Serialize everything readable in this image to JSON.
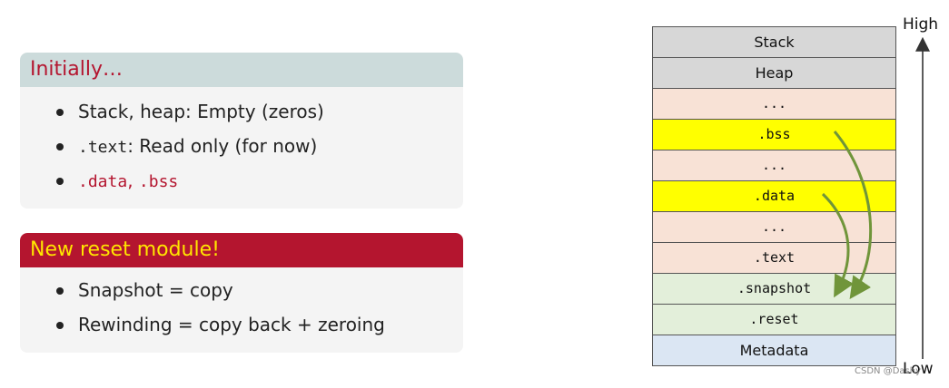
{
  "left_panel": {
    "box1": {
      "title": "Initially…",
      "items": [
        {
          "parts": [
            "Stack, heap: Empty (zeros)"
          ]
        },
        {
          "parts": [
            ".text",
            ": Read only (for now)"
          ]
        },
        {
          "parts": [
            ".data",
            ", ",
            ".bss"
          ]
        }
      ]
    },
    "box2": {
      "title": "New reset module!",
      "items": [
        {
          "text": "Snapshot = copy"
        },
        {
          "text": "Rewinding = copy back + zeroing"
        }
      ]
    }
  },
  "memory_map": {
    "segments": [
      {
        "label": "Stack",
        "color": "#d7d7d7"
      },
      {
        "label": "Heap",
        "color": "#d7d7d7"
      },
      {
        "label": "...",
        "color": "#f8e2d6"
      },
      {
        "label": ".bss",
        "color": "#ffff00"
      },
      {
        "label": "...",
        "color": "#f8e2d6"
      },
      {
        "label": ".data",
        "color": "#ffff00"
      },
      {
        "label": "...",
        "color": "#f8e2d6"
      },
      {
        "label": ".text",
        "color": "#f8e2d6"
      },
      {
        "label": ".snapshot",
        "color": "#e3efda"
      },
      {
        "label": ".reset",
        "color": "#e3efda"
      },
      {
        "label": "Metadata",
        "color": "#dbe6f3"
      }
    ],
    "high_label": "High",
    "low_label": "Low",
    "arrow_color": "#70953a"
  },
  "watermark": "CSDN @Dashy"
}
